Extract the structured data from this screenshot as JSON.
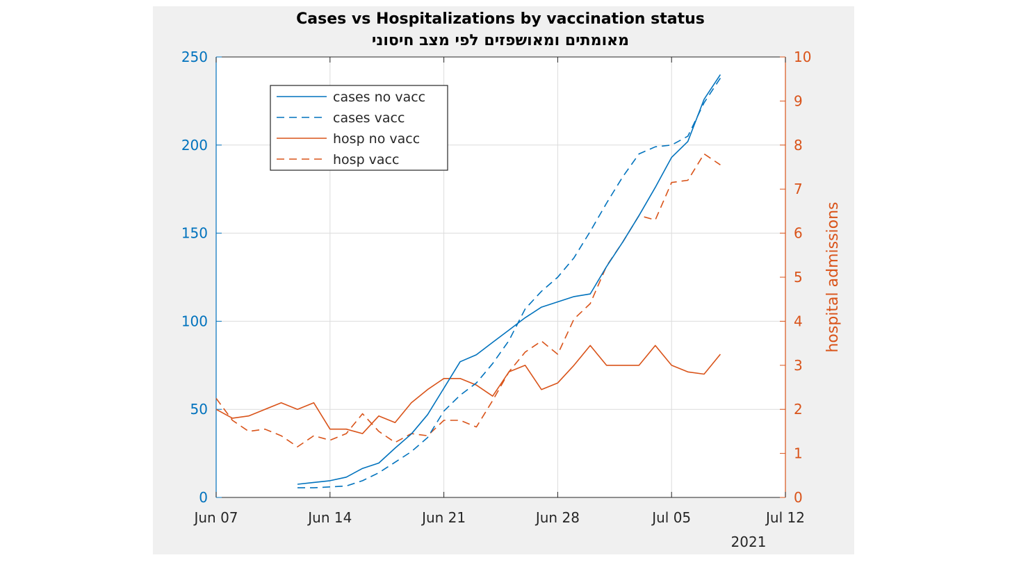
{
  "chart_data": {
    "type": "line",
    "title": "Cases vs Hospitalizations by vaccination status",
    "subtitle": "מאומתים ומאושפזים לפי מצב חיסוני",
    "xlabel": "",
    "ylabel_left": "",
    "ylabel_right": "hospital admissions",
    "x_ticks": [
      "Jun 07",
      "Jun 14",
      "Jun 21",
      "Jun 28",
      "Jul 05",
      "Jul 12"
    ],
    "x_year_label": "2021",
    "x_range": [
      "2021-06-07",
      "2021-07-12"
    ],
    "ylim_left": [
      0,
      250
    ],
    "yticks_left": [
      0,
      50,
      100,
      150,
      200,
      250
    ],
    "ylim_right": [
      0,
      10
    ],
    "yticks_right": [
      0,
      1,
      2,
      3,
      4,
      5,
      6,
      7,
      8,
      9,
      10
    ],
    "grid": true,
    "legend_position": "top-left",
    "colors": {
      "cases": "#0072BD",
      "hosp": "#D95319",
      "left_axis": "#0072BD",
      "right_axis": "#D95319"
    },
    "series": [
      {
        "name": "cases no vacc",
        "axis": "left",
        "style": "solid",
        "color": "#0072BD",
        "x": [
          "2021-06-12",
          "2021-06-13",
          "2021-06-14",
          "2021-06-15",
          "2021-06-16",
          "2021-06-17",
          "2021-06-18",
          "2021-06-19",
          "2021-06-20",
          "2021-06-21",
          "2021-06-22",
          "2021-06-23",
          "2021-06-24",
          "2021-06-25",
          "2021-06-26",
          "2021-06-27",
          "2021-06-28",
          "2021-06-29",
          "2021-06-30",
          "2021-07-01",
          "2021-07-02",
          "2021-07-03",
          "2021-07-04",
          "2021-07-05",
          "2021-07-06",
          "2021-07-07",
          "2021-07-08"
        ],
        "y": [
          7.5,
          8.5,
          9.5,
          11.5,
          16.5,
          19.5,
          28,
          36,
          47,
          62,
          77,
          81,
          88,
          95,
          102,
          108,
          111,
          114,
          115.5,
          131,
          145,
          160,
          176,
          193,
          202,
          226,
          240
        ]
      },
      {
        "name": "cases vacc",
        "axis": "left",
        "style": "dashed",
        "color": "#0072BD",
        "x": [
          "2021-06-12",
          "2021-06-13",
          "2021-06-14",
          "2021-06-15",
          "2021-06-16",
          "2021-06-17",
          "2021-06-18",
          "2021-06-19",
          "2021-06-20",
          "2021-06-21",
          "2021-06-22",
          "2021-06-23",
          "2021-06-24",
          "2021-06-25",
          "2021-06-26",
          "2021-06-27",
          "2021-06-28",
          "2021-06-29",
          "2021-06-30",
          "2021-07-01",
          "2021-07-02",
          "2021-07-03",
          "2021-07-04",
          "2021-07-05",
          "2021-07-06",
          "2021-07-07",
          "2021-07-08"
        ],
        "y": [
          5.5,
          5.5,
          6,
          6.5,
          9.5,
          14,
          20,
          26,
          34,
          49,
          58,
          65,
          76,
          89,
          107,
          117,
          125,
          136,
          151,
          167,
          182,
          195,
          199,
          200,
          205,
          224,
          238
        ]
      },
      {
        "name": "hosp no vacc",
        "axis": "right",
        "style": "solid",
        "color": "#D95319",
        "x": [
          "2021-06-07",
          "2021-06-08",
          "2021-06-09",
          "2021-06-10",
          "2021-06-11",
          "2021-06-12",
          "2021-06-13",
          "2021-06-14",
          "2021-06-15",
          "2021-06-16",
          "2021-06-17",
          "2021-06-18",
          "2021-06-19",
          "2021-06-20",
          "2021-06-21",
          "2021-06-22",
          "2021-06-23",
          "2021-06-24",
          "2021-06-25",
          "2021-06-26",
          "2021-06-27",
          "2021-06-28",
          "2021-06-29",
          "2021-06-30",
          "2021-07-01",
          "2021-07-02",
          "2021-07-03",
          "2021-07-04",
          "2021-07-05",
          "2021-07-06",
          "2021-07-07",
          "2021-07-08"
        ],
        "y": [
          2.0,
          1.8,
          1.85,
          2.0,
          2.15,
          2.0,
          2.15,
          1.55,
          1.55,
          1.45,
          1.85,
          1.7,
          2.15,
          2.45,
          2.7,
          2.7,
          2.55,
          2.3,
          2.85,
          3.0,
          2.45,
          2.6,
          3.0,
          3.45,
          3.0,
          3.0,
          3.0,
          3.45,
          3.0,
          2.85,
          2.8,
          3.25
        ]
      },
      {
        "name": "hosp vacc",
        "axis": "right",
        "style": "dashed",
        "color": "#D95319",
        "x": [
          "2021-06-07",
          "2021-06-08",
          "2021-06-09",
          "2021-06-10",
          "2021-06-11",
          "2021-06-12",
          "2021-06-13",
          "2021-06-14",
          "2021-06-15",
          "2021-06-16",
          "2021-06-17",
          "2021-06-18",
          "2021-06-19",
          "2021-06-20",
          "2021-06-21",
          "2021-06-22",
          "2021-06-23",
          "2021-06-24",
          "2021-06-25",
          "2021-06-26",
          "2021-06-27",
          "2021-06-28",
          "2021-06-29",
          "2021-06-30",
          "2021-07-01",
          "2021-07-02",
          "2021-07-03",
          "2021-07-04",
          "2021-07-05",
          "2021-07-06",
          "2021-07-07",
          "2021-07-08"
        ],
        "y": [
          2.25,
          1.75,
          1.5,
          1.55,
          1.4,
          1.15,
          1.4,
          1.3,
          1.45,
          1.9,
          1.5,
          1.25,
          1.45,
          1.4,
          1.75,
          1.75,
          1.6,
          2.2,
          2.85,
          3.3,
          3.55,
          3.25,
          4.05,
          4.4,
          5.25,
          5.8,
          6.4,
          6.3,
          7.15,
          7.2,
          7.8,
          7.55
        ]
      }
    ]
  }
}
